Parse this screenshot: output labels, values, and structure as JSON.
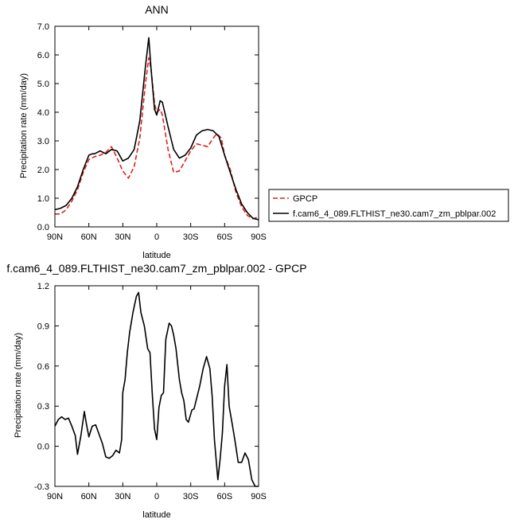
{
  "chart_data": [
    {
      "type": "line",
      "title": "ANN",
      "xlabel": "latitude",
      "ylabel": "Precipitation rate (mm/day)",
      "xlim": [
        90,
        -90
      ],
      "ylim": [
        0,
        7
      ],
      "xticks": [
        90,
        60,
        30,
        0,
        -30,
        -60,
        -90
      ],
      "xtick_labels": [
        "90N",
        "60N",
        "30N",
        "0",
        "30S",
        "60S",
        "90S"
      ],
      "yticks": [
        0,
        1,
        2,
        3,
        4,
        5,
        6,
        7
      ],
      "ytick_labels": [
        "0.0",
        "1.0",
        "2.0",
        "3.0",
        "4.0",
        "5.0",
        "6.0",
        "7.0"
      ],
      "legend_position": "right",
      "series": [
        {
          "name": "GPCP",
          "color": "#e0201b",
          "dash": "dashed",
          "x": [
            90,
            85,
            80,
            75,
            70,
            65,
            60,
            55,
            50,
            45,
            40,
            35,
            30,
            25,
            20,
            15,
            10,
            7,
            5,
            2,
            0,
            -3,
            -5,
            -10,
            -15,
            -20,
            -25,
            -30,
            -35,
            -40,
            -45,
            -50,
            -53,
            -57,
            -60,
            -65,
            -70,
            -75,
            -80,
            -85,
            -90
          ],
          "y": [
            0.45,
            0.45,
            0.6,
            0.9,
            1.3,
            1.9,
            2.35,
            2.45,
            2.5,
            2.6,
            2.8,
            2.4,
            1.95,
            1.7,
            2.1,
            3.1,
            5.0,
            5.9,
            5.5,
            4.3,
            4.0,
            4.1,
            3.9,
            2.7,
            1.9,
            1.95,
            2.3,
            2.65,
            2.9,
            2.85,
            2.8,
            3.1,
            3.25,
            3.1,
            2.5,
            2.0,
            1.2,
            0.7,
            0.4,
            0.28,
            0.35
          ]
        },
        {
          "name": "f.cam6_4_089.FLTHIST_ne30.cam7_zm_pblpar.002",
          "color": "#000000",
          "dash": "solid",
          "x": [
            90,
            85,
            80,
            75,
            70,
            65,
            60,
            57,
            55,
            50,
            45,
            40,
            35,
            30,
            25,
            20,
            15,
            10,
            7,
            5,
            2,
            0,
            -3,
            -5,
            -10,
            -15,
            -20,
            -25,
            -30,
            -35,
            -40,
            -45,
            -50,
            -55,
            -60,
            -65,
            -70,
            -75,
            -80,
            -85,
            -90
          ],
          "y": [
            0.6,
            0.65,
            0.75,
            1.0,
            1.4,
            2.0,
            2.5,
            2.55,
            2.55,
            2.65,
            2.55,
            2.7,
            2.65,
            2.3,
            2.4,
            2.7,
            3.7,
            5.6,
            6.6,
            5.5,
            4.1,
            3.9,
            4.4,
            4.35,
            3.5,
            2.7,
            2.4,
            2.5,
            2.75,
            3.2,
            3.35,
            3.4,
            3.35,
            3.15,
            2.5,
            1.9,
            1.3,
            0.8,
            0.5,
            0.3,
            0.25
          ]
        }
      ]
    },
    {
      "type": "line",
      "title": "f.cam6_4_089.FLTHIST_ne30.cam7_zm_pblpar.002 - GPCP",
      "xlabel": "latitude",
      "ylabel": "Precipitation rate (mm/day)",
      "xlim": [
        90,
        -90
      ],
      "ylim": [
        -0.3,
        1.2
      ],
      "xticks": [
        90,
        60,
        30,
        0,
        -30,
        -60,
        -90
      ],
      "xtick_labels": [
        "90N",
        "60N",
        "30N",
        "0",
        "30S",
        "60S",
        "90S"
      ],
      "yticks": [
        -0.3,
        0,
        0.3,
        0.6,
        0.9,
        1.2
      ],
      "ytick_labels": [
        "-0.3",
        "0.0",
        "0.3",
        "0.6",
        "0.9",
        "1.2"
      ],
      "series": [
        {
          "color": "#000000",
          "dash": "solid",
          "x": [
            90,
            87,
            84,
            81,
            78,
            75,
            72,
            70,
            67,
            64,
            62,
            60,
            57,
            54,
            51,
            48,
            45,
            42,
            39,
            36,
            33,
            31,
            30,
            28,
            26,
            24,
            21,
            18,
            16,
            14,
            11,
            8,
            6,
            4,
            2,
            0,
            -2,
            -4,
            -6,
            -8,
            -11,
            -13,
            -15,
            -17,
            -20,
            -22,
            -24,
            -26,
            -28,
            -31,
            -33,
            -35,
            -38,
            -41,
            -44,
            -47,
            -49,
            -51,
            -54,
            -56,
            -58,
            -60,
            -62,
            -64,
            -67,
            -69,
            -72,
            -75,
            -78,
            -81,
            -84,
            -87,
            -90
          ],
          "y": [
            0.15,
            0.2,
            0.22,
            0.2,
            0.21,
            0.15,
            0.08,
            -0.06,
            0.08,
            0.26,
            0.16,
            0.07,
            0.15,
            0.16,
            0.09,
            0.02,
            -0.08,
            -0.09,
            -0.07,
            -0.03,
            -0.05,
            0.05,
            0.4,
            0.5,
            0.7,
            0.85,
            1.0,
            1.12,
            1.15,
            1.0,
            0.9,
            0.73,
            0.7,
            0.4,
            0.13,
            0.05,
            0.29,
            0.38,
            0.4,
            0.8,
            0.92,
            0.9,
            0.83,
            0.73,
            0.5,
            0.4,
            0.34,
            0.2,
            0.18,
            0.27,
            0.28,
            0.35,
            0.45,
            0.58,
            0.67,
            0.58,
            0.37,
            0.05,
            -0.25,
            -0.1,
            0.1,
            0.45,
            0.61,
            0.3,
            0.15,
            0.05,
            -0.12,
            -0.12,
            -0.05,
            -0.1,
            -0.25,
            -0.3,
            -0.3
          ]
        }
      ]
    }
  ]
}
